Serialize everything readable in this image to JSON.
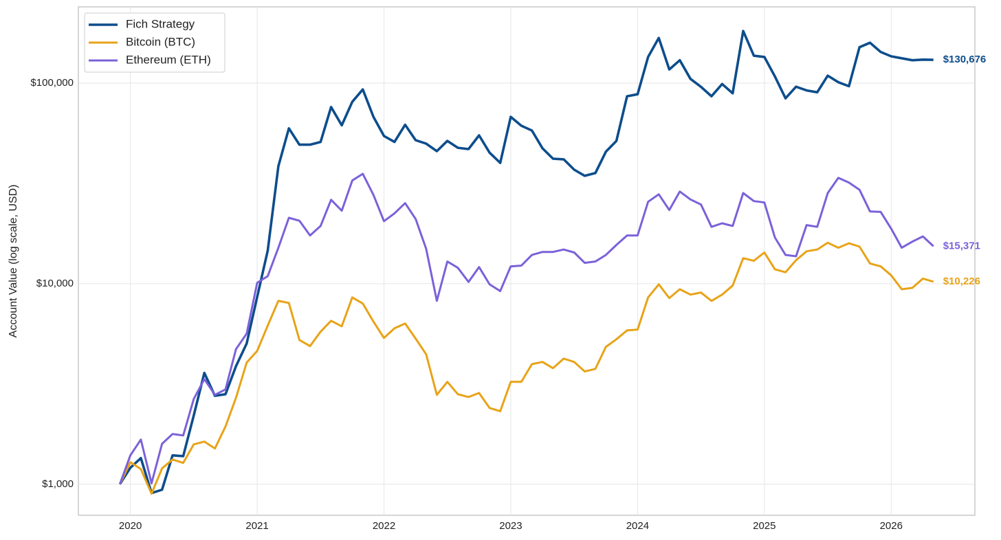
{
  "chart_data": {
    "type": "line",
    "y_label": "Account Value (log scale, USD)",
    "log_y": true,
    "grid": true,
    "legend": "upper left",
    "xlim": [
      2019.59,
      2026.66
    ],
    "xticks": [
      2020,
      2021,
      2022,
      2023,
      2024,
      2025,
      2026
    ],
    "ylim": [
      700,
      240000
    ],
    "yticks": [
      {
        "value": 1000,
        "label": "$1,000"
      },
      {
        "value": 10000,
        "label": "$10,000"
      },
      {
        "value": 100000,
        "label": "$100,000"
      }
    ],
    "x": [
      2019.917,
      2020,
      2020.083,
      2020.167,
      2020.25,
      2020.333,
      2020.417,
      2020.5,
      2020.583,
      2020.667,
      2020.75,
      2020.833,
      2020.917,
      2021,
      2021.083,
      2021.167,
      2021.25,
      2021.333,
      2021.417,
      2021.5,
      2021.583,
      2021.667,
      2021.75,
      2021.833,
      2021.917,
      2022,
      2022.083,
      2022.167,
      2022.25,
      2022.333,
      2022.417,
      2022.5,
      2022.583,
      2022.667,
      2022.75,
      2022.833,
      2022.917,
      2023,
      2023.083,
      2023.167,
      2023.25,
      2023.333,
      2023.417,
      2023.5,
      2023.583,
      2023.667,
      2023.75,
      2023.833,
      2023.917,
      2024,
      2024.083,
      2024.167,
      2024.25,
      2024.333,
      2024.417,
      2024.5,
      2024.583,
      2024.667,
      2024.75,
      2024.833,
      2024.917,
      2025,
      2025.083,
      2025.167,
      2025.25,
      2025.333,
      2025.417,
      2025.5,
      2025.583,
      2025.667,
      2025.75,
      2025.833,
      2025.917,
      2026,
      2026.083,
      2026.167,
      2026.25,
      2026.333
    ],
    "series": [
      {
        "name": "Fich Strategy",
        "color": "#0d4d8c",
        "end_label": "$130,676",
        "values": [
          1000,
          1208,
          1349,
          903,
          939,
          1393,
          1381,
          2200,
          3590,
          2760,
          2810,
          3880,
          5030,
          8600,
          14600,
          38500,
          59500,
          49300,
          49300,
          50900,
          76000,
          61600,
          80700,
          93000,
          67900,
          54500,
          50900,
          62000,
          51900,
          49900,
          45800,
          51500,
          47600,
          46900,
          54900,
          45000,
          40000,
          67900,
          61300,
          58000,
          47300,
          42000,
          41700,
          37000,
          34500,
          35600,
          45500,
          51500,
          86000,
          88000,
          135000,
          168000,
          117000,
          130000,
          105000,
          95800,
          86000,
          99000,
          89000,
          182000,
          137000,
          135000,
          108000,
          84000,
          96000,
          92000,
          90000,
          109000,
          101000,
          96500,
          151000,
          159000,
          143000,
          136000,
          133000,
          130000,
          131000,
          130676
        ]
      },
      {
        "name": "Bitcoin (BTC)",
        "color": "#e8a317",
        "end_label": "$10,226",
        "values": [
          1000,
          1287,
          1190,
          896,
          1199,
          1328,
          1277,
          1580,
          1630,
          1507,
          1940,
          2700,
          4040,
          4620,
          6180,
          8210,
          8010,
          5240,
          4880,
          5760,
          6530,
          6130,
          8540,
          7960,
          6470,
          5360,
          5990,
          6330,
          5320,
          4440,
          2790,
          3240,
          2810,
          2720,
          2850,
          2400,
          2310,
          3240,
          3240,
          3970,
          4070,
          3790,
          4230,
          4070,
          3650,
          3760,
          4840,
          5280,
          5850,
          5900,
          8540,
          9920,
          8470,
          9380,
          8820,
          9030,
          8210,
          8820,
          9780,
          13400,
          13000,
          14300,
          11800,
          11400,
          13100,
          14500,
          14800,
          16000,
          15100,
          15900,
          15300,
          12600,
          12200,
          11000,
          9380,
          9530,
          10600,
          10226
        ]
      },
      {
        "name": "Ethereum (ETH)",
        "color": "#7b61d9",
        "end_label": "$15,371",
        "values": [
          1000,
          1393,
          1670,
          1010,
          1590,
          1780,
          1750,
          2660,
          3340,
          2790,
          2970,
          4720,
          5630,
          10100,
          10900,
          15100,
          21300,
          20600,
          17400,
          19400,
          26200,
          23100,
          32700,
          35300,
          27700,
          20500,
          22400,
          25200,
          21000,
          14900,
          8210,
          12900,
          12000,
          10200,
          12100,
          9920,
          9180,
          12200,
          12300,
          13900,
          14400,
          14400,
          14800,
          14300,
          12700,
          12900,
          13900,
          15600,
          17400,
          17400,
          25600,
          27900,
          23300,
          28800,
          26300,
          24800,
          19200,
          20000,
          19400,
          28300,
          25800,
          25400,
          17000,
          13900,
          13700,
          19600,
          19200,
          28300,
          33700,
          31900,
          29400,
          22900,
          22800,
          18800,
          15100,
          16200,
          17200,
          15371
        ]
      }
    ]
  }
}
